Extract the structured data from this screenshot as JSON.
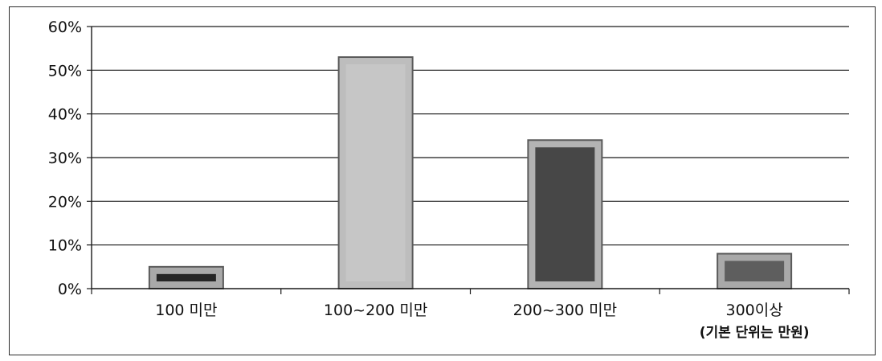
{
  "chart_data": {
    "type": "bar",
    "categories": [
      "100 미만",
      "100~200 미만",
      "200~300 미만",
      "300이상"
    ],
    "category_notes": [
      "",
      "",
      "",
      "(기본 단위는 만원)"
    ],
    "values": [
      5,
      53,
      34,
      8
    ],
    "value_unit": "%",
    "ylim": [
      0,
      60
    ],
    "yticks": [
      0,
      10,
      20,
      30,
      40,
      50,
      60
    ],
    "ytick_labels": [
      "0%",
      "10%",
      "20%",
      "30%",
      "40%",
      "50%",
      "60%"
    ],
    "grid": true,
    "legend": "none",
    "bar_outer_colors": [
      "#a9a9a9",
      "#bdbdbd",
      "#b3b3b3",
      "#a9a9a9"
    ],
    "bar_inner_colors": [
      "#262626",
      "#c6c6c6",
      "#474747",
      "#5e5e5e"
    ]
  }
}
